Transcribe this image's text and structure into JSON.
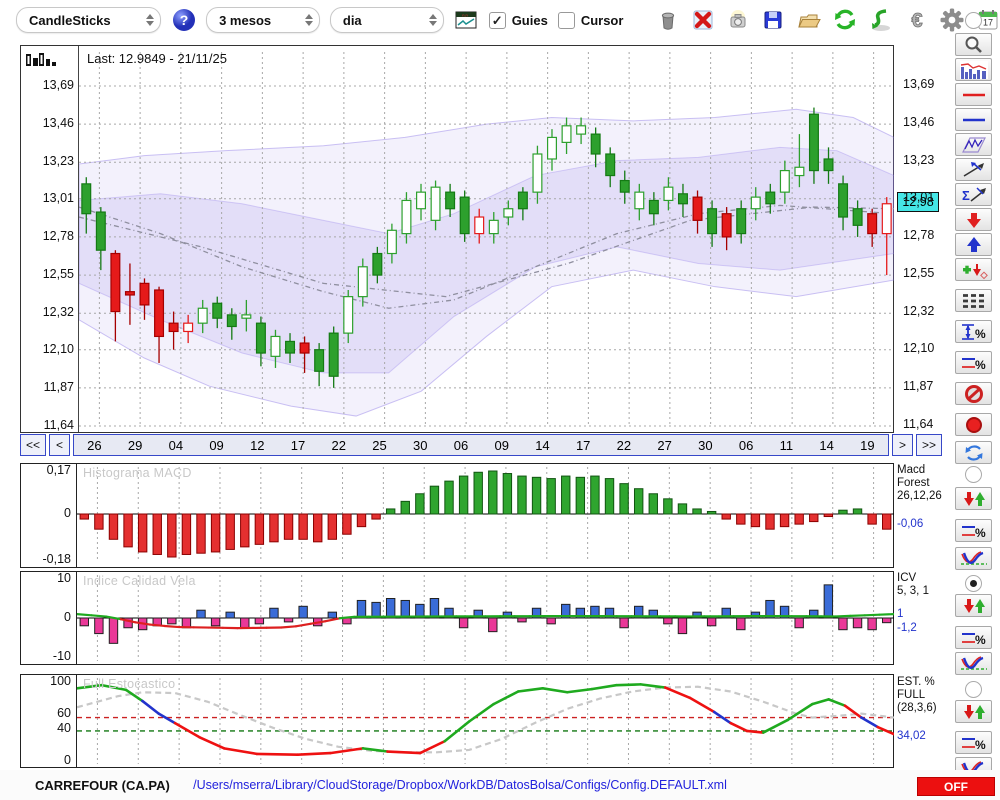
{
  "toolbar": {
    "chart_type": "CandleSticks",
    "period": "3 mesos",
    "interval": "dia",
    "guies_label": "Guies",
    "guies_checked": true,
    "cursor_label": "Cursor",
    "cursor_checked": false,
    "calendar_day": "17",
    "icons": [
      "help-icon",
      "chart-window-icon",
      "trash-icon",
      "delete-icon",
      "snapshot-icon",
      "save-icon",
      "open-folder-icon",
      "refresh-icon",
      "sync-icon",
      "euro-icon",
      "settings-gear-icon",
      "calendar-icon"
    ]
  },
  "chart_header": {
    "last": "Last: 12.9849 - 21/11/25"
  },
  "nav": {
    "first": "<<",
    "prev": "<",
    "next": ">",
    "last": ">>"
  },
  "panels": {
    "macd": {
      "title": "Histograma MACD",
      "ylabels": [
        {
          "text": "0,17",
          "v": 0.17
        },
        {
          "text": "0",
          "v": 0
        },
        {
          "text": "-0,18",
          "v": -0.18
        }
      ],
      "info_lines": [
        "Macd",
        "Forest",
        "26,12,26"
      ],
      "value": "-0,06"
    },
    "icv": {
      "title": "Indice Calidad Vela",
      "ylabels": [
        {
          "text": "10",
          "v": 10
        },
        {
          "text": "0",
          "v": 0
        },
        {
          "text": "-10",
          "v": -10
        }
      ],
      "info_lines": [
        "ICV",
        "5, 3, 1"
      ],
      "value1": "1",
      "value2": "-1,2"
    },
    "est": {
      "title": "Full Estocastico",
      "ylabels": [
        {
          "text": "100",
          "v": 100
        },
        {
          "text": "60",
          "v": 60
        },
        {
          "text": "40",
          "v": 40
        },
        {
          "text": "0",
          "v": 0
        }
      ],
      "info_lines": [
        "EST. %",
        "FULL",
        "(28,3,6)"
      ],
      "value": "34,02"
    }
  },
  "sidebar": {
    "tools_top": [
      "zoom",
      "volume-chart",
      "red-line",
      "blue-line",
      "zigzag-channel",
      "trend-arrow",
      "sum-trend",
      "arrow-down",
      "arrow-up",
      "add-signal",
      "levels",
      "vertical-range-percent",
      "lines-percent",
      "forbid",
      "record",
      "refresh"
    ],
    "panel_tools": [
      "signal-arrows",
      "lines-percent",
      "indicator-curve"
    ],
    "radios": {
      "main": false,
      "macd": false,
      "icv": true,
      "est": false
    }
  },
  "statusbar": {
    "symbol": "CARREFOUR (CA.PA)",
    "config_path": "/Users/mserra/Library/CloudStorage/Dropbox/WorkDB/DatosBolsa/Configs/Config.DEFAULT.xml",
    "off": "OFF"
  },
  "colors": {
    "candle_up": "#2da02d",
    "candle_down": "#e51a1a",
    "band": "#8c78e6",
    "macd_pos": "#2fa52f",
    "macd_neg": "#e43030",
    "icv_pos": "#3a6cd8",
    "icv_neg": "#ea3898",
    "est_up": "#1faa1f",
    "est_down": "#ee1111",
    "est_cross": "#2233cc",
    "tag_bg": "#45e6e6",
    "off_bg": "#ec1010",
    "path_color": "#2222dd"
  },
  "chart_data": {
    "main": {
      "type": "candlestick",
      "ylim": [
        11.64,
        13.69
      ],
      "yticklabels": [
        "13,69",
        "13,46",
        "13,23",
        "13,01",
        "12,78",
        "12,55",
        "12,32",
        "12,10",
        "11,87",
        "11,64"
      ],
      "xticklabels": [
        "26",
        "29",
        "04",
        "09",
        "12",
        "17",
        "22",
        "25",
        "30",
        "06",
        "09",
        "14",
        "17",
        "22",
        "27",
        "30",
        "06",
        "11",
        "14",
        "19"
      ],
      "last_price_tag": "12,98",
      "candles": [
        [
          12.92,
          13.14,
          12.8,
          13.1,
          "g"
        ],
        [
          12.7,
          12.96,
          12.58,
          12.93,
          "g"
        ],
        [
          12.68,
          12.7,
          12.15,
          12.33,
          "r"
        ],
        [
          12.45,
          12.62,
          12.25,
          12.43,
          "r"
        ],
        [
          12.5,
          12.53,
          12.28,
          12.37,
          "r"
        ],
        [
          12.46,
          12.48,
          12.02,
          12.18,
          "r"
        ],
        [
          12.26,
          12.33,
          12.1,
          12.21,
          "r"
        ],
        [
          12.21,
          12.31,
          12.14,
          12.26,
          "R"
        ],
        [
          12.26,
          12.4,
          12.2,
          12.35,
          "G"
        ],
        [
          12.29,
          12.42,
          12.23,
          12.38,
          "g"
        ],
        [
          12.24,
          12.35,
          12.16,
          12.31,
          "g"
        ],
        [
          12.29,
          12.4,
          12.21,
          12.31,
          "G"
        ],
        [
          12.08,
          12.3,
          12.0,
          12.26,
          "g"
        ],
        [
          12.06,
          12.22,
          11.99,
          12.18,
          "G"
        ],
        [
          12.08,
          12.2,
          12.02,
          12.15,
          "g"
        ],
        [
          12.14,
          12.18,
          11.96,
          12.08,
          "r"
        ],
        [
          11.97,
          12.14,
          11.88,
          12.1,
          "g"
        ],
        [
          11.94,
          12.24,
          11.87,
          12.2,
          "g"
        ],
        [
          12.2,
          12.46,
          12.14,
          12.42,
          "G"
        ],
        [
          12.42,
          12.65,
          12.36,
          12.6,
          "G"
        ],
        [
          12.55,
          12.72,
          12.5,
          12.68,
          "g"
        ],
        [
          12.68,
          12.86,
          12.62,
          12.82,
          "G"
        ],
        [
          12.8,
          13.05,
          12.74,
          13.0,
          "G"
        ],
        [
          12.95,
          13.1,
          12.88,
          13.05,
          "G"
        ],
        [
          12.88,
          13.12,
          12.82,
          13.08,
          "G"
        ],
        [
          12.95,
          13.1,
          12.9,
          13.05,
          "g"
        ],
        [
          12.8,
          13.06,
          12.75,
          13.02,
          "g"
        ],
        [
          12.9,
          12.95,
          12.74,
          12.8,
          "R"
        ],
        [
          12.8,
          12.93,
          12.74,
          12.88,
          "G"
        ],
        [
          12.9,
          13.0,
          12.85,
          12.95,
          "G"
        ],
        [
          12.95,
          13.08,
          12.88,
          13.05,
          "g"
        ],
        [
          13.05,
          13.33,
          12.98,
          13.28,
          "G"
        ],
        [
          13.25,
          13.43,
          13.18,
          13.38,
          "G"
        ],
        [
          13.35,
          13.5,
          13.28,
          13.45,
          "G"
        ],
        [
          13.4,
          13.5,
          13.34,
          13.45,
          "G"
        ],
        [
          13.28,
          13.44,
          13.2,
          13.4,
          "g"
        ],
        [
          13.15,
          13.32,
          13.08,
          13.28,
          "g"
        ],
        [
          13.05,
          13.18,
          12.98,
          13.12,
          "g"
        ],
        [
          12.95,
          13.1,
          12.88,
          13.05,
          "G"
        ],
        [
          12.92,
          13.05,
          12.85,
          13.0,
          "g"
        ],
        [
          13.0,
          13.14,
          12.94,
          13.08,
          "G"
        ],
        [
          12.98,
          13.1,
          12.9,
          13.04,
          "g"
        ],
        [
          13.02,
          13.06,
          12.8,
          12.88,
          "r"
        ],
        [
          12.8,
          13.0,
          12.72,
          12.95,
          "g"
        ],
        [
          12.92,
          12.96,
          12.7,
          12.78,
          "r"
        ],
        [
          12.8,
          13.0,
          12.74,
          12.95,
          "g"
        ],
        [
          12.95,
          13.08,
          12.88,
          13.02,
          "G"
        ],
        [
          12.98,
          13.1,
          12.92,
          13.05,
          "g"
        ],
        [
          13.05,
          13.24,
          12.98,
          13.18,
          "G"
        ],
        [
          13.15,
          13.4,
          13.08,
          13.2,
          "G"
        ],
        [
          13.18,
          13.56,
          13.1,
          13.52,
          "g"
        ],
        [
          13.18,
          13.32,
          13.1,
          13.25,
          "g"
        ],
        [
          12.9,
          13.15,
          12.82,
          13.1,
          "g"
        ],
        [
          12.85,
          13.0,
          12.78,
          12.95,
          "g"
        ],
        [
          12.92,
          12.95,
          12.72,
          12.8,
          "r"
        ],
        [
          12.8,
          13.02,
          12.55,
          12.98,
          "R"
        ]
      ],
      "band_outer_upper": [
        [
          0,
          13.22
        ],
        [
          0.08,
          13.27
        ],
        [
          0.18,
          13.3
        ],
        [
          0.3,
          13.33
        ],
        [
          0.4,
          13.38
        ],
        [
          0.5,
          13.46
        ],
        [
          0.58,
          13.5
        ],
        [
          0.68,
          13.48
        ],
        [
          0.78,
          13.5
        ],
        [
          0.88,
          13.55
        ],
        [
          0.95,
          13.5
        ],
        [
          1,
          13.38
        ]
      ],
      "band_outer_lower": [
        [
          0,
          12.28
        ],
        [
          0.08,
          12.05
        ],
        [
          0.16,
          11.88
        ],
        [
          0.26,
          11.76
        ],
        [
          0.34,
          11.7
        ],
        [
          0.42,
          11.85
        ],
        [
          0.5,
          12.18
        ],
        [
          0.58,
          12.48
        ],
        [
          0.68,
          12.58
        ],
        [
          0.78,
          12.48
        ],
        [
          0.88,
          12.42
        ],
        [
          1,
          12.52
        ]
      ],
      "band_inner_upper": [
        [
          0,
          13.0
        ],
        [
          0.1,
          13.04
        ],
        [
          0.2,
          12.98
        ],
        [
          0.3,
          12.88
        ],
        [
          0.38,
          12.8
        ],
        [
          0.46,
          12.92
        ],
        [
          0.56,
          13.15
        ],
        [
          0.66,
          13.24
        ],
        [
          0.76,
          13.26
        ],
        [
          0.86,
          13.32
        ],
        [
          0.93,
          13.3
        ],
        [
          1,
          13.15
        ]
      ],
      "band_inner_lower": [
        [
          0,
          12.5
        ],
        [
          0.1,
          12.28
        ],
        [
          0.2,
          12.08
        ],
        [
          0.3,
          11.96
        ],
        [
          0.38,
          11.96
        ],
        [
          0.46,
          12.3
        ],
        [
          0.56,
          12.6
        ],
        [
          0.66,
          12.72
        ],
        [
          0.76,
          12.62
        ],
        [
          0.86,
          12.58
        ],
        [
          1,
          12.68
        ]
      ],
      "ma1": [
        [
          0,
          12.96
        ],
        [
          0.1,
          12.8
        ],
        [
          0.2,
          12.6
        ],
        [
          0.3,
          12.45
        ],
        [
          0.38,
          12.35
        ],
        [
          0.46,
          12.4
        ],
        [
          0.56,
          12.6
        ],
        [
          0.66,
          12.8
        ],
        [
          0.76,
          12.92
        ],
        [
          0.86,
          12.97
        ],
        [
          1,
          12.92
        ]
      ],
      "ma2": [
        [
          0,
          12.9
        ],
        [
          0.15,
          12.72
        ],
        [
          0.3,
          12.5
        ],
        [
          0.45,
          12.42
        ],
        [
          0.6,
          12.62
        ],
        [
          0.75,
          12.88
        ],
        [
          0.9,
          12.96
        ],
        [
          1,
          12.95
        ]
      ]
    },
    "macd": {
      "type": "bar",
      "ylim": [
        -0.18,
        0.17
      ],
      "last": "-0,06",
      "values": [
        -0.02,
        -0.06,
        -0.1,
        -0.13,
        -0.15,
        -0.16,
        -0.17,
        -0.16,
        -0.155,
        -0.15,
        -0.14,
        -0.13,
        -0.12,
        -0.11,
        -0.1,
        -0.1,
        -0.11,
        -0.1,
        -0.08,
        -0.05,
        -0.02,
        0.02,
        0.05,
        0.08,
        0.11,
        0.13,
        0.15,
        0.165,
        0.17,
        0.16,
        0.15,
        0.145,
        0.14,
        0.15,
        0.145,
        0.15,
        0.14,
        0.12,
        0.1,
        0.08,
        0.06,
        0.04,
        0.02,
        0.01,
        -0.02,
        -0.04,
        -0.05,
        -0.06,
        -0.05,
        -0.04,
        -0.03,
        -0.01,
        0.015,
        0.02,
        -0.04,
        -0.06
      ]
    },
    "icv": {
      "type": "bar+line",
      "ylim": [
        -10,
        10
      ],
      "bar_values": [
        -2,
        -4,
        -6.5,
        -2.5,
        -3,
        -2,
        -1.5,
        -2.5,
        2,
        -2,
        1.5,
        -2.5,
        -1.5,
        2.5,
        -1,
        3,
        -2,
        1.5,
        -1.5,
        4.5,
        4,
        5,
        4.5,
        3.5,
        5,
        2.5,
        -2.5,
        2,
        -3.5,
        1.5,
        -1,
        2.5,
        -1.5,
        3.5,
        2.5,
        3,
        2.5,
        -2.5,
        3,
        2,
        -1.5,
        -4,
        1.5,
        -2,
        2.5,
        -3,
        1.5,
        4.5,
        3,
        -2.5,
        2,
        8.5,
        -3,
        -2.5,
        -3,
        -1.2
      ],
      "line": [
        [
          0,
          1
        ],
        [
          0.04,
          0.3
        ],
        [
          0.08,
          -1.5
        ],
        [
          0.12,
          -2.3
        ],
        [
          0.2,
          -2.6
        ],
        [
          0.26,
          -2.4
        ],
        [
          0.3,
          -1
        ],
        [
          0.33,
          0.3
        ],
        [
          0.45,
          0.4
        ],
        [
          0.6,
          0.5
        ],
        [
          0.75,
          0.4
        ],
        [
          0.85,
          0.5
        ],
        [
          0.93,
          0.4
        ],
        [
          1,
          1
        ]
      ]
    },
    "est": {
      "type": "line",
      "ylim": [
        0,
        100
      ],
      "k": [
        [
          0,
          92,
          "g"
        ],
        [
          0.03,
          96,
          "g"
        ],
        [
          0.06,
          90,
          "g"
        ],
        [
          0.08,
          76,
          "b"
        ],
        [
          0.1,
          60,
          "b"
        ],
        [
          0.12,
          48,
          "r"
        ],
        [
          0.15,
          30,
          "r"
        ],
        [
          0.18,
          16,
          "r"
        ],
        [
          0.22,
          9,
          "r"
        ],
        [
          0.27,
          8,
          "r"
        ],
        [
          0.31,
          10,
          "r"
        ],
        [
          0.35,
          16,
          "g"
        ],
        [
          0.38,
          12,
          "r"
        ],
        [
          0.42,
          10,
          "r"
        ],
        [
          0.45,
          25,
          "g"
        ],
        [
          0.48,
          50,
          "g"
        ],
        [
          0.51,
          72,
          "g"
        ],
        [
          0.54,
          88,
          "g"
        ],
        [
          0.57,
          92,
          "g"
        ],
        [
          0.6,
          87,
          "g"
        ],
        [
          0.63,
          91,
          "g"
        ],
        [
          0.66,
          96,
          "g"
        ],
        [
          0.69,
          97,
          "g"
        ],
        [
          0.72,
          93,
          "r"
        ],
        [
          0.75,
          80,
          "r"
        ],
        [
          0.78,
          62,
          "b"
        ],
        [
          0.8,
          48,
          "r"
        ],
        [
          0.82,
          38,
          "r"
        ],
        [
          0.84,
          36,
          "g"
        ],
        [
          0.87,
          52,
          "g"
        ],
        [
          0.9,
          72,
          "g"
        ],
        [
          0.92,
          78,
          "g"
        ],
        [
          0.94,
          70,
          "r"
        ],
        [
          0.96,
          55,
          "b"
        ],
        [
          0.98,
          43,
          "r"
        ],
        [
          1,
          34,
          "r"
        ]
      ],
      "d": [
        [
          0,
          68
        ],
        [
          0.05,
          82
        ],
        [
          0.08,
          87
        ],
        [
          0.12,
          86
        ],
        [
          0.16,
          75
        ],
        [
          0.2,
          58
        ],
        [
          0.24,
          42
        ],
        [
          0.28,
          28
        ],
        [
          0.32,
          18
        ],
        [
          0.36,
          13
        ],
        [
          0.4,
          11
        ],
        [
          0.44,
          11
        ],
        [
          0.48,
          14
        ],
        [
          0.52,
          28
        ],
        [
          0.56,
          48
        ],
        [
          0.6,
          66
        ],
        [
          0.64,
          79
        ],
        [
          0.68,
          88
        ],
        [
          0.72,
          93
        ],
        [
          0.76,
          94
        ],
        [
          0.8,
          88
        ],
        [
          0.84,
          75
        ],
        [
          0.88,
          60
        ],
        [
          0.9,
          55
        ],
        [
          0.93,
          57
        ],
        [
          0.96,
          60
        ],
        [
          1,
          55
        ]
      ],
      "hlines": [
        {
          "v": 55,
          "color": "#cc2222"
        },
        {
          "v": 38,
          "color": "#117711"
        }
      ]
    }
  }
}
